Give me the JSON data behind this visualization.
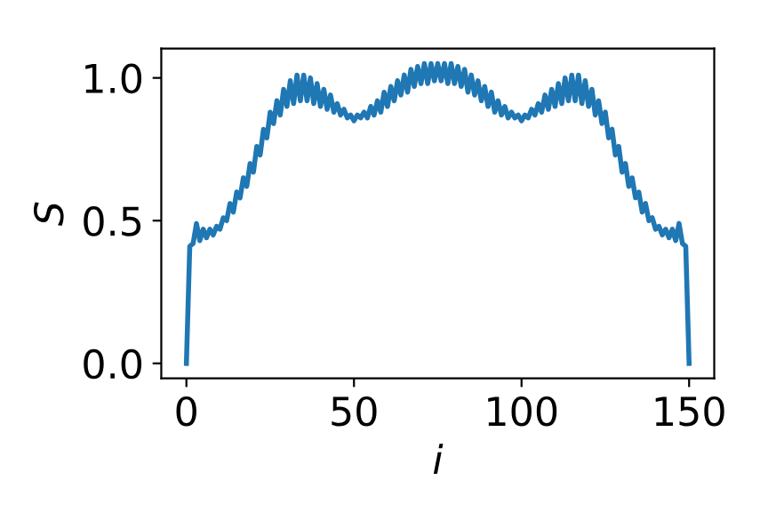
{
  "chart_data": {
    "type": "line",
    "xlabel": "i",
    "ylabel": "S",
    "xlim": [
      -7.5,
      157.5
    ],
    "ylim": [
      -0.0525,
      1.1025
    ],
    "xticks": [
      0,
      50,
      100,
      150
    ],
    "yticks": [
      {
        "value": 0,
        "label": "0.0"
      },
      {
        "value": 0.5,
        "label": "0.5"
      },
      {
        "value": 1,
        "label": "1.0"
      }
    ],
    "grid": false,
    "marker": "none",
    "line_style": "solid",
    "x": [
      0,
      1,
      2,
      3,
      4,
      5,
      6,
      7,
      8,
      9,
      10,
      11,
      12,
      13,
      14,
      15,
      16,
      17,
      18,
      19,
      20,
      21,
      22,
      23,
      24,
      25,
      26,
      27,
      28,
      29,
      30,
      31,
      32,
      33,
      34,
      35,
      36,
      37,
      38,
      39,
      40,
      41,
      42,
      43,
      44,
      45,
      46,
      47,
      48,
      49,
      50,
      51,
      52,
      53,
      54,
      55,
      56,
      57,
      58,
      59,
      60,
      61,
      62,
      63,
      64,
      65,
      66,
      67,
      68,
      69,
      70,
      71,
      72,
      73,
      74,
      75,
      76,
      77,
      78,
      79,
      80,
      81,
      82,
      83,
      84,
      85,
      86,
      87,
      88,
      89,
      90,
      91,
      92,
      93,
      94,
      95,
      96,
      97,
      98,
      99,
      100,
      101,
      102,
      103,
      104,
      105,
      106,
      107,
      108,
      109,
      110,
      111,
      112,
      113,
      114,
      115,
      116,
      117,
      118,
      119,
      120,
      121,
      122,
      123,
      124,
      125,
      126,
      127,
      128,
      129,
      130,
      131,
      132,
      133,
      134,
      135,
      136,
      137,
      138,
      139,
      140,
      141,
      142,
      143,
      144,
      145,
      146,
      147,
      148,
      149,
      150
    ],
    "series": [
      {
        "color": "#1f77b4",
        "values": [
          0,
          0.41,
          0.42,
          0.49,
          0.43,
          0.47,
          0.44,
          0.47,
          0.45,
          0.48,
          0.47,
          0.51,
          0.5,
          0.56,
          0.53,
          0.6,
          0.58,
          0.65,
          0.62,
          0.7,
          0.67,
          0.76,
          0.73,
          0.82,
          0.79,
          0.88,
          0.84,
          0.92,
          0.87,
          0.96,
          0.9,
          0.99,
          0.91,
          1.01,
          0.92,
          1.01,
          0.92,
          1.0,
          0.91,
          0.98,
          0.9,
          0.96,
          0.89,
          0.94,
          0.88,
          0.91,
          0.87,
          0.89,
          0.86,
          0.87,
          0.85,
          0.87,
          0.86,
          0.88,
          0.86,
          0.9,
          0.87,
          0.92,
          0.88,
          0.95,
          0.9,
          0.97,
          0.92,
          0.99,
          0.94,
          1.01,
          0.95,
          1.03,
          0.97,
          1.04,
          0.98,
          1.05,
          0.98,
          1.05,
          0.99,
          1.05,
          0.99,
          1.05,
          0.98,
          1.05,
          0.98,
          1.04,
          0.97,
          1.03,
          0.95,
          1.01,
          0.94,
          0.99,
          0.92,
          0.97,
          0.9,
          0.95,
          0.88,
          0.92,
          0.87,
          0.9,
          0.86,
          0.88,
          0.86,
          0.87,
          0.85,
          0.87,
          0.86,
          0.89,
          0.87,
          0.91,
          0.88,
          0.94,
          0.89,
          0.96,
          0.9,
          0.98,
          0.91,
          1.0,
          0.92,
          1.01,
          0.92,
          1.01,
          0.91,
          0.99,
          0.9,
          0.96,
          0.87,
          0.92,
          0.84,
          0.88,
          0.79,
          0.82,
          0.73,
          0.76,
          0.67,
          0.7,
          0.62,
          0.65,
          0.58,
          0.6,
          0.53,
          0.56,
          0.5,
          0.51,
          0.47,
          0.48,
          0.45,
          0.47,
          0.44,
          0.47,
          0.43,
          0.49,
          0.42,
          0.41,
          0
        ]
      }
    ]
  }
}
